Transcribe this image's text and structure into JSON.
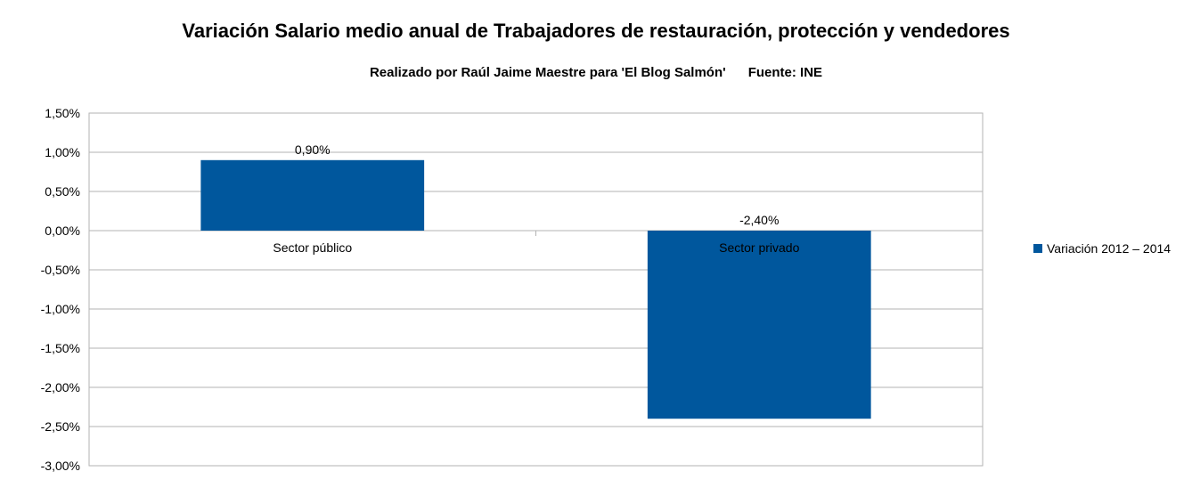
{
  "chart_data": {
    "type": "bar",
    "title": "Variación Salario medio anual de Trabajadores de restauración, protección y vendedores",
    "subtitle": "Realizado por Raúl Jaime Maestre para 'El Blog Salmón'      Fuente: INE",
    "categories": [
      "Sector público",
      "Sector privado"
    ],
    "series": [
      {
        "name": "Variación 2012 – 2014",
        "values": [
          0.9,
          -2.4
        ],
        "data_labels": [
          "0,90%",
          "-2,40%"
        ],
        "color": "#00579d"
      }
    ],
    "ylim": [
      -3.0,
      1.5
    ],
    "yticks": [
      1.5,
      1.0,
      0.5,
      0.0,
      -0.5,
      -1.0,
      -1.5,
      -2.0,
      -2.5,
      -3.0
    ],
    "ytick_labels": [
      "1,50%",
      "1,00%",
      "0,50%",
      "0,00%",
      "-0,50%",
      "-1,00%",
      "-1,50%",
      "-2,00%",
      "-2,50%",
      "-3,00%"
    ],
    "grid": true,
    "legend_position": "right"
  }
}
